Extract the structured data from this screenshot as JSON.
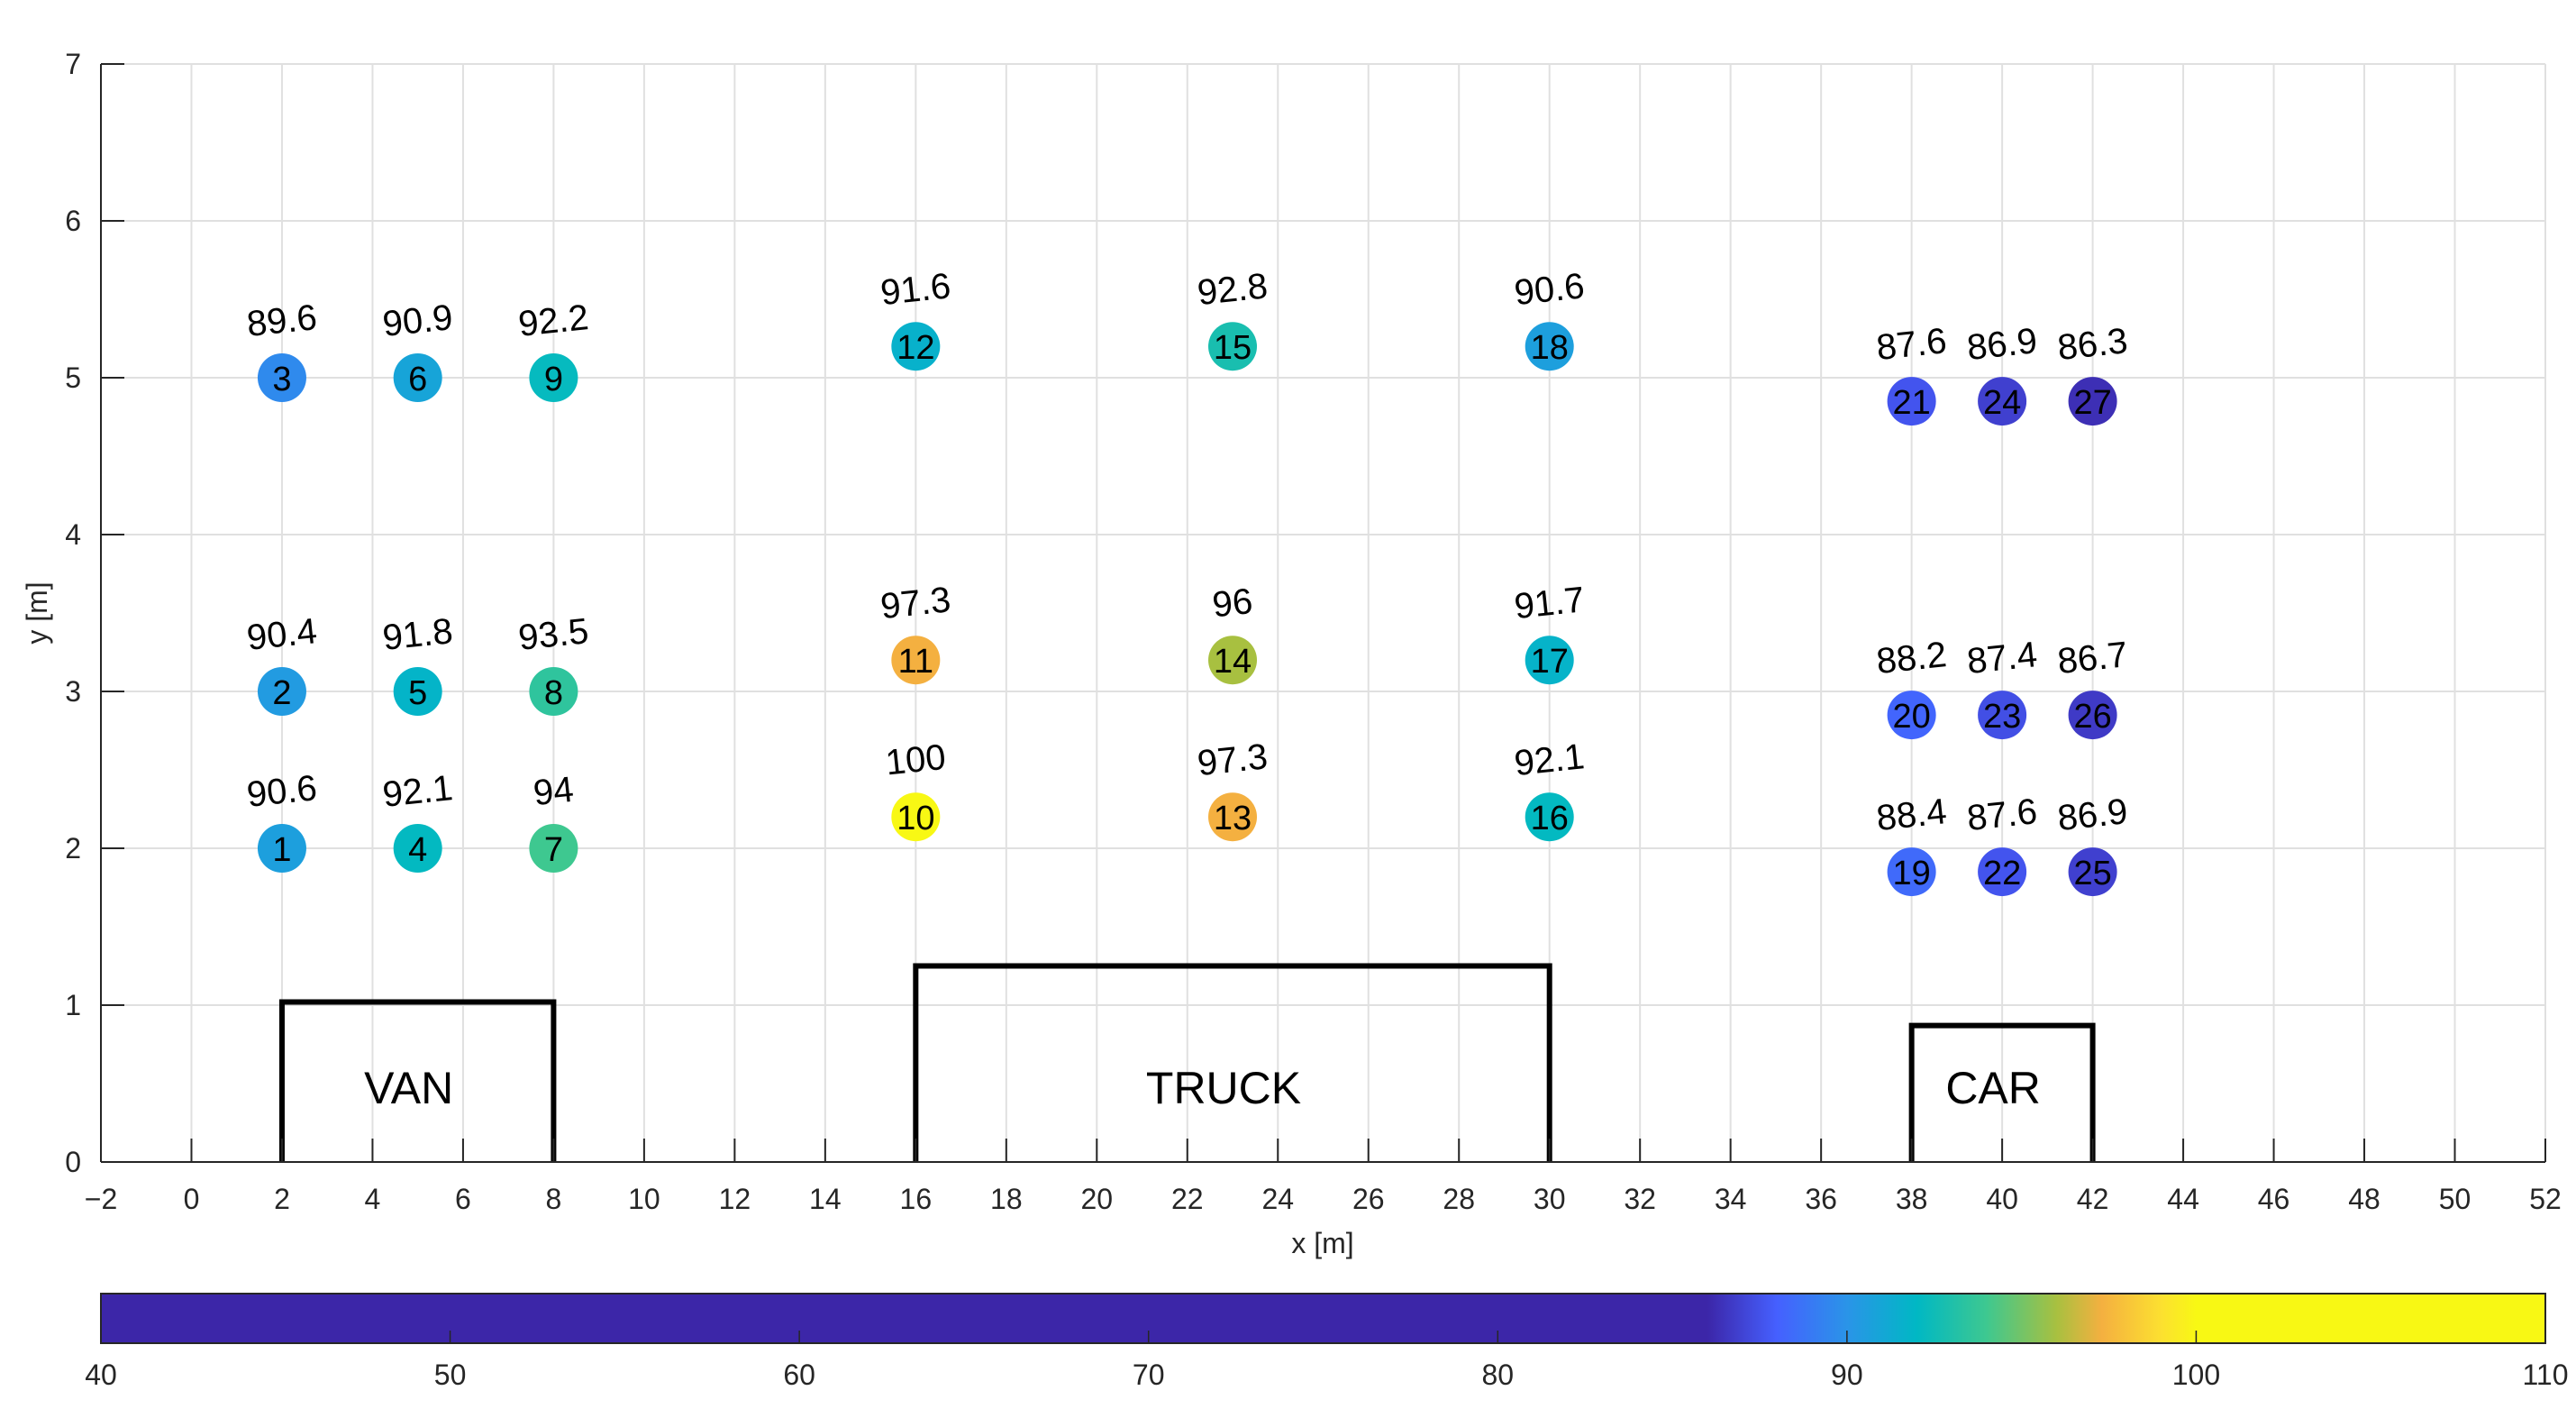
{
  "chart_data": {
    "type": "scatter",
    "title": "",
    "xlabel": "x [m]",
    "ylabel": "y [m]",
    "xlim": [
      -2,
      52
    ],
    "ylim": [
      0,
      7
    ],
    "xticks": [
      -2,
      0,
      2,
      4,
      6,
      8,
      10,
      12,
      14,
      16,
      18,
      20,
      22,
      24,
      26,
      28,
      30,
      32,
      34,
      36,
      38,
      40,
      42,
      44,
      46,
      48,
      50,
      52
    ],
    "yticks": [
      0,
      1,
      2,
      3,
      4,
      5,
      6,
      7
    ],
    "grid": true,
    "points": [
      {
        "id": "1",
        "x": 2,
        "y": 2,
        "value": "90.6"
      },
      {
        "id": "2",
        "x": 2,
        "y": 3,
        "value": "90.4"
      },
      {
        "id": "3",
        "x": 2,
        "y": 5,
        "value": "89.6"
      },
      {
        "id": "4",
        "x": 5,
        "y": 2,
        "value": "92.1"
      },
      {
        "id": "5",
        "x": 5,
        "y": 3,
        "value": "91.8"
      },
      {
        "id": "6",
        "x": 5,
        "y": 5,
        "value": "90.9"
      },
      {
        "id": "7",
        "x": 8,
        "y": 2,
        "value": "94"
      },
      {
        "id": "8",
        "x": 8,
        "y": 3,
        "value": "93.5"
      },
      {
        "id": "9",
        "x": 8,
        "y": 5,
        "value": "92.2"
      },
      {
        "id": "10",
        "x": 16,
        "y": 2.2,
        "value": "100"
      },
      {
        "id": "11",
        "x": 16,
        "y": 3.2,
        "value": "97.3"
      },
      {
        "id": "12",
        "x": 16,
        "y": 5.2,
        "value": "91.6"
      },
      {
        "id": "13",
        "x": 23,
        "y": 2.2,
        "value": "97.3"
      },
      {
        "id": "14",
        "x": 23,
        "y": 3.2,
        "value": "96"
      },
      {
        "id": "15",
        "x": 23,
        "y": 5.2,
        "value": "92.8"
      },
      {
        "id": "16",
        "x": 30,
        "y": 2.2,
        "value": "92.1"
      },
      {
        "id": "17",
        "x": 30,
        "y": 3.2,
        "value": "91.7"
      },
      {
        "id": "18",
        "x": 30,
        "y": 5.2,
        "value": "90.6"
      },
      {
        "id": "19",
        "x": 38,
        "y": 1.85,
        "value": "88.4"
      },
      {
        "id": "20",
        "x": 38,
        "y": 2.85,
        "value": "88.2"
      },
      {
        "id": "21",
        "x": 38,
        "y": 4.85,
        "value": "87.6"
      },
      {
        "id": "22",
        "x": 40,
        "y": 1.85,
        "value": "87.6"
      },
      {
        "id": "23",
        "x": 40,
        "y": 2.85,
        "value": "87.4"
      },
      {
        "id": "24",
        "x": 40,
        "y": 4.85,
        "value": "86.9"
      },
      {
        "id": "25",
        "x": 42,
        "y": 1.85,
        "value": "86.9"
      },
      {
        "id": "26",
        "x": 42,
        "y": 2.85,
        "value": "86.7"
      },
      {
        "id": "27",
        "x": 42,
        "y": 4.85,
        "value": "86.3"
      }
    ],
    "vehicles": [
      {
        "label": "VAN",
        "x0": 2,
        "x1": 8,
        "height": 1.02
      },
      {
        "label": "TRUCK",
        "x0": 16,
        "x1": 30,
        "height": 1.25
      },
      {
        "label": "CAR",
        "x0": 38,
        "x1": 42,
        "height": 0.87
      }
    ],
    "colorbar": {
      "range": [
        40,
        110
      ],
      "ticks": [
        40,
        50,
        60,
        70,
        80,
        90,
        100,
        110
      ],
      "placement": "bottom",
      "stops": [
        [
          40,
          "#3c26a8"
        ],
        [
          86,
          "#3c26a8"
        ],
        [
          88,
          "#4560ff"
        ],
        [
          90,
          "#2a94e8"
        ],
        [
          92,
          "#00b8c4"
        ],
        [
          94,
          "#3ec890"
        ],
        [
          96,
          "#a8c040"
        ],
        [
          97.3,
          "#f4b040"
        ],
        [
          99,
          "#fce030"
        ],
        [
          100,
          "#f8f814"
        ],
        [
          110,
          "#f8f814"
        ]
      ]
    }
  }
}
